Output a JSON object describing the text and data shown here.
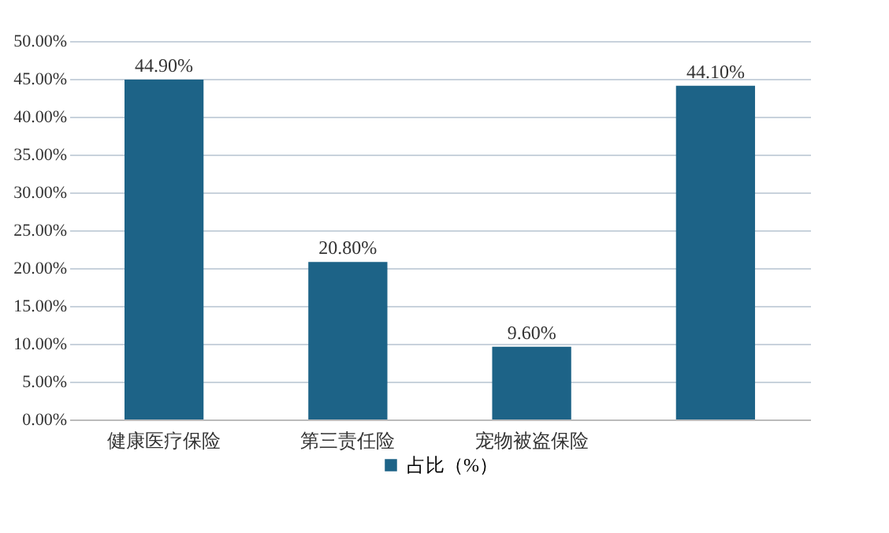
{
  "chart_data": {
    "type": "bar",
    "categories": [
      "健康医疗保险",
      "第三责任险",
      "宠物被盗保险",
      null
    ],
    "series": [
      {
        "name": "占比（%）",
        "color": "#1d6387",
        "values": [
          44.9,
          20.8,
          9.6,
          44.1
        ],
        "value_labels": [
          "44.90%",
          "20.80%",
          "9.60%",
          "44.10%"
        ]
      }
    ],
    "ylim": [
      0,
      50
    ],
    "yticks": [
      {
        "value": 0,
        "label": "0.00%"
      },
      {
        "value": 5,
        "label": "5.00%"
      },
      {
        "value": 10,
        "label": "10.00%"
      },
      {
        "value": 15,
        "label": "15.00%"
      },
      {
        "value": 20,
        "label": "20.00%"
      },
      {
        "value": 25,
        "label": "25.00%"
      },
      {
        "value": 30,
        "label": "30.00%"
      },
      {
        "value": 35,
        "label": "35.00%"
      },
      {
        "value": 40,
        "label": "40.00%"
      },
      {
        "value": 45,
        "label": "45.00%"
      },
      {
        "value": 50,
        "label": "50.00%"
      }
    ],
    "grid": "y",
    "legend": "bottom"
  }
}
